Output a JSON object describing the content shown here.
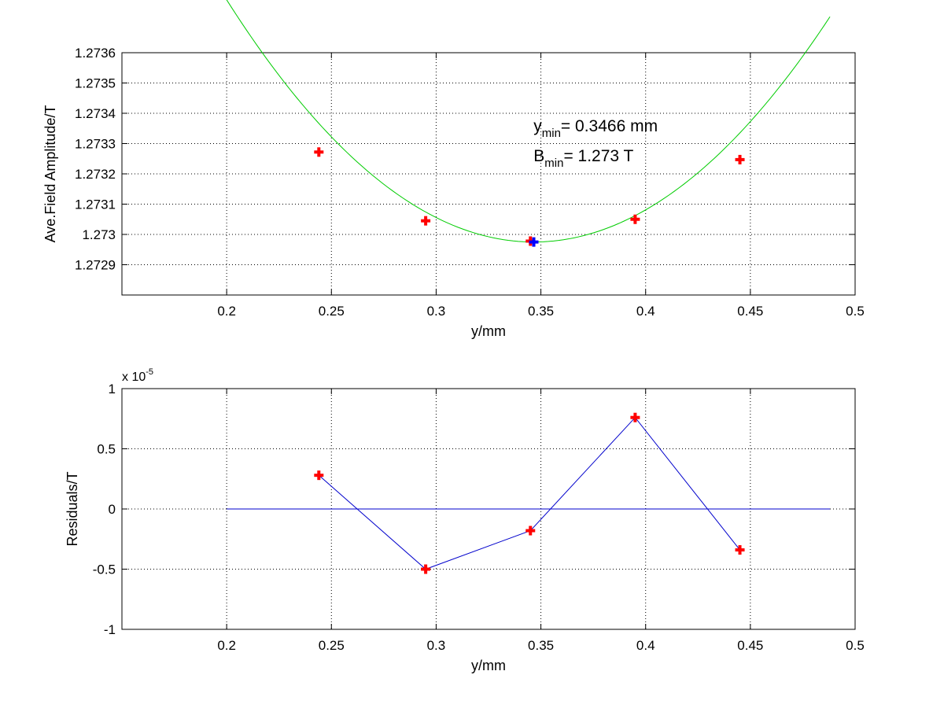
{
  "chart_data": [
    {
      "type": "line",
      "title": "",
      "xlabel": "y/mm",
      "ylabel": "Ave.Field Amplitude/T",
      "xlim": [
        0.15,
        0.5
      ],
      "ylim": [
        1.2728,
        1.2736
      ],
      "xticks": [
        0.2,
        0.25,
        0.3,
        0.35,
        0.4,
        0.45,
        0.5
      ],
      "xtick_labels": [
        "0.2",
        "0.25",
        "0.3",
        "0.35",
        "0.4",
        "0.45",
        "0.5"
      ],
      "yticks": [
        1.2729,
        1.273,
        1.2731,
        1.2732,
        1.2733,
        1.2734,
        1.2735,
        1.2736
      ],
      "ytick_labels": [
        "1.2729",
        "1.273",
        "1.2731",
        "1.2732",
        "1.2733",
        "1.2734",
        "1.2735",
        "1.2736"
      ],
      "grid": true,
      "fit_curve": {
        "color": "#00cc00",
        "x_range": [
          0.2,
          0.488
        ],
        "vertex_x": 0.3466,
        "vertex_y": 1.272975,
        "curvature": 0.0372
      },
      "series": [
        {
          "color": "#ff0000",
          "marker": "plus",
          "x": [
            0.244,
            0.295,
            0.345,
            0.395,
            0.445
          ],
          "y": [
            1.273272,
            1.273045,
            1.272978,
            1.27305,
            1.273247
          ]
        },
        {
          "color": "#0000ff",
          "marker": "plus",
          "x": [
            0.3466
          ],
          "y": [
            1.272975
          ]
        }
      ],
      "annotations": {
        "ymin_var": "y",
        "ymin_sub": "min",
        "ymin_text": "= 0.3466 mm",
        "bmin_var": "B",
        "bmin_sub": "min",
        "bmin_text": "= 1.273 T"
      }
    },
    {
      "type": "line",
      "title": "",
      "xlabel": "y/mm",
      "ylabel": "Residuals/T",
      "xlim": [
        0.15,
        0.5
      ],
      "ylim": [
        -1,
        1
      ],
      "y_multiplier": {
        "base": "x 10",
        "exponent": "-5"
      },
      "xticks": [
        0.2,
        0.25,
        0.3,
        0.35,
        0.4,
        0.45,
        0.5
      ],
      "xtick_labels": [
        "0.2",
        "0.25",
        "0.3",
        "0.35",
        "0.4",
        "0.45",
        "0.5"
      ],
      "yticks": [
        -1,
        -0.5,
        0,
        0.5,
        1
      ],
      "ytick_labels": [
        "-1",
        "-0.5",
        "0",
        "0.5",
        "1"
      ],
      "grid": true,
      "zero_line": {
        "color": "#0000cc",
        "x_range": [
          0.2,
          0.488
        ]
      },
      "series": [
        {
          "color": "#0000cc",
          "marker_color": "#ff0000",
          "marker": "plus",
          "x": [
            0.244,
            0.295,
            0.345,
            0.395,
            0.445
          ],
          "y": [
            0.28,
            -0.5,
            -0.18,
            0.76,
            -0.34
          ]
        }
      ]
    }
  ]
}
